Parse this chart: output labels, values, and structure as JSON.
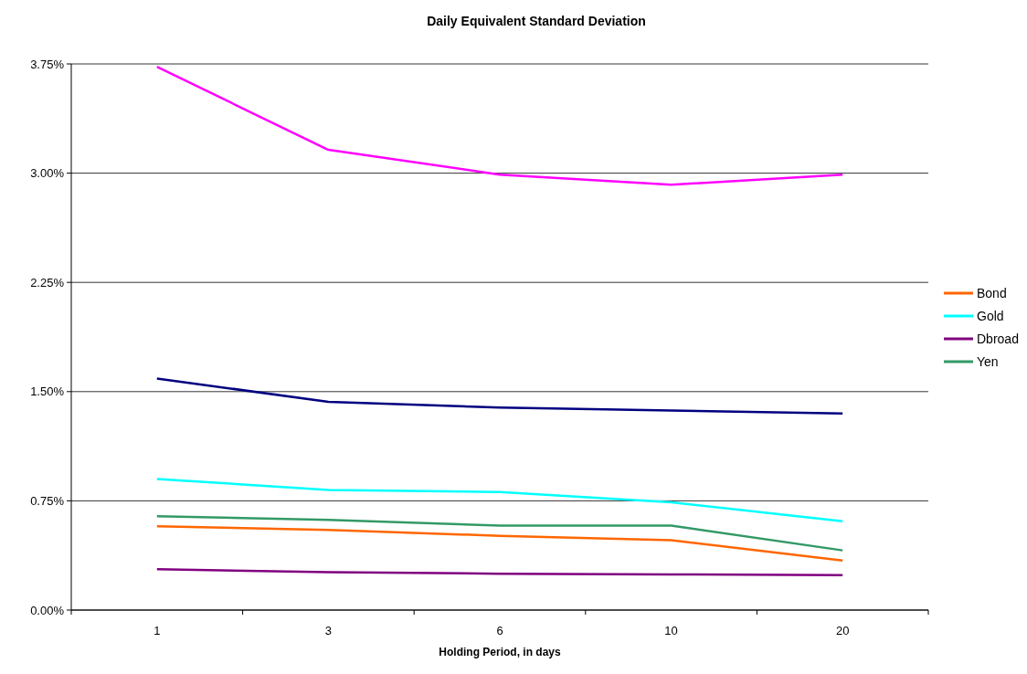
{
  "chart_data": {
    "type": "line",
    "title": "Daily Equivalent Standard Deviation",
    "xlabel": "Holding Period, in days",
    "categories": [
      "1",
      "3",
      "6",
      "10",
      "20"
    ],
    "series": [
      {
        "color": "#000080",
        "values": [
          1.59,
          1.43,
          1.39,
          1.37,
          1.35
        ]
      },
      {
        "color": "#ff00ff",
        "values": [
          3.73,
          3.16,
          2.99,
          2.92,
          2.99
        ]
      },
      {
        "name": "Bond",
        "color": "#ff6600",
        "values": [
          0.575,
          0.55,
          0.51,
          0.48,
          0.34
        ]
      },
      {
        "name": "Gold",
        "color": "#00ffff",
        "values": [
          0.9,
          0.825,
          0.81,
          0.74,
          0.61
        ]
      },
      {
        "name": "Dbroad",
        "color": "#800080",
        "values": [
          0.28,
          0.26,
          0.25,
          0.245,
          0.24
        ]
      },
      {
        "name": "Yen",
        "color": "#339966",
        "values": [
          0.645,
          0.62,
          0.58,
          0.58,
          0.41
        ]
      }
    ],
    "ylim": [
      0,
      3.75
    ],
    "yticks": [
      {
        "value": 0,
        "label": "0.00%"
      },
      {
        "value": 0.75,
        "label": "0.75%"
      },
      {
        "value": 1.5,
        "label": "1.50%"
      },
      {
        "value": 2.25,
        "label": "2.25%"
      },
      {
        "value": 3,
        "label": "3.00%"
      },
      {
        "value": 3.75,
        "label": "3.75%"
      }
    ],
    "grid": "y",
    "legend": "right",
    "marker": "none",
    "line_style": "solid"
  }
}
